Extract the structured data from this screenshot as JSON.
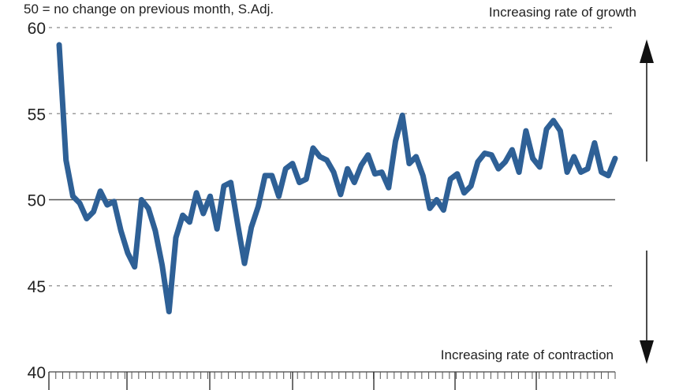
{
  "subtitle": "50 = no change on previous month, S.Adj.",
  "annotations": {
    "growth": "Increasing rate of growth",
    "contraction": "Increasing rate of contraction"
  },
  "colors": {
    "series": "#2e6096",
    "grid": "#8a8a8a",
    "baseline": "#555555",
    "arrow": "#111111"
  },
  "chart_data": {
    "type": "line",
    "title": "",
    "subtitle": "50 = no change on previous month, S.Adj.",
    "xlabel": "",
    "ylabel": "",
    "ylim": [
      40,
      60
    ],
    "yticks": [
      40,
      45,
      50,
      55,
      60
    ],
    "gridlines": [
      45,
      55,
      60
    ],
    "baseline": 50,
    "x_tick_labels": [],
    "series": [
      {
        "name": "",
        "values": [
          59,
          52.3,
          50.2,
          49.8,
          48.9,
          49.3,
          50.5,
          49.7,
          49.9,
          48.2,
          46.9,
          46.1,
          50.0,
          49.5,
          48.2,
          46.2,
          43.5,
          47.8,
          49.1,
          48.7,
          50.4,
          49.2,
          50.2,
          48.3,
          50.8,
          51.0,
          48.6,
          46.3,
          48.4,
          49.6,
          51.4,
          51.4,
          50.2,
          51.8,
          52.1,
          51.0,
          51.2,
          53.0,
          52.5,
          52.3,
          51.6,
          50.3,
          51.8,
          51.0,
          52.0,
          52.6,
          51.5,
          51.6,
          50.7,
          53.4,
          54.9,
          52.1,
          52.5,
          51.4,
          49.5,
          50.0,
          49.4,
          51.2,
          51.5,
          50.4,
          50.8,
          52.2,
          52.7,
          52.6,
          51.8,
          52.2,
          52.9,
          51.6,
          54.0,
          52.4,
          51.9,
          54.1,
          54.6,
          54.0,
          51.6,
          52.5,
          51.6,
          51.8,
          53.3,
          51.6,
          51.4,
          52.4
        ]
      }
    ]
  }
}
